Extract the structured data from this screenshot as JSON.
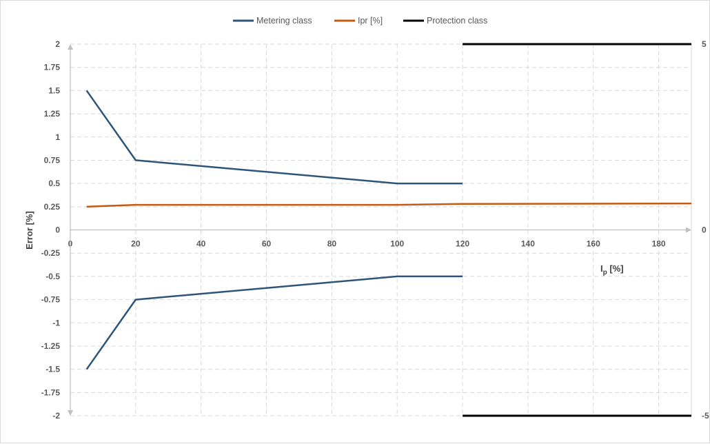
{
  "chart_data": {
    "type": "line",
    "legend": {
      "position": "top",
      "entries": [
        "Metering class",
        "Ipr [%]",
        "Protection class"
      ]
    },
    "colors": {
      "metering": "#2e5478",
      "ipr": "#c55a11",
      "protection": "#000000",
      "grid": "#d9d9d9",
      "axis": "#bfbfbf"
    },
    "xlabel": "I",
    "xlabel_sub": "p",
    "xlabel_unit": " [%]",
    "ylabel": "Error [%]",
    "xlim": [
      0,
      190
    ],
    "xticks": [
      0,
      20,
      40,
      60,
      80,
      100,
      120,
      140,
      160,
      180
    ],
    "ylim": [
      -2,
      2
    ],
    "yticks": [
      2,
      1.75,
      1.5,
      1.25,
      1,
      0.75,
      0.5,
      0.25,
      0,
      -0.25,
      -0.5,
      -0.75,
      -1,
      -1.25,
      -1.5,
      -1.75,
      -2
    ],
    "y2lim": [
      -5,
      5
    ],
    "y2ticks": [
      5,
      0,
      -5
    ],
    "grid": true,
    "series": [
      {
        "name": "Metering class",
        "axis": "primary",
        "x": [
          5,
          20,
          100,
          120
        ],
        "y": [
          1.5,
          0.75,
          0.5,
          0.5
        ]
      },
      {
        "name": "Metering class",
        "axis": "primary",
        "x": [
          5,
          20,
          100,
          120
        ],
        "y": [
          -1.5,
          -0.75,
          -0.5,
          -0.5
        ]
      },
      {
        "name": "Ipr [%]",
        "axis": "primary",
        "x": [
          5,
          20,
          100,
          120,
          190
        ],
        "y": [
          0.25,
          0.27,
          0.27,
          0.28,
          0.285
        ]
      },
      {
        "name": "Protection class",
        "axis": "secondary",
        "x": [
          120,
          190
        ],
        "y": [
          5,
          5
        ]
      },
      {
        "name": "Protection class",
        "axis": "secondary",
        "x": [
          120,
          190
        ],
        "y": [
          -5,
          -5
        ]
      }
    ]
  }
}
